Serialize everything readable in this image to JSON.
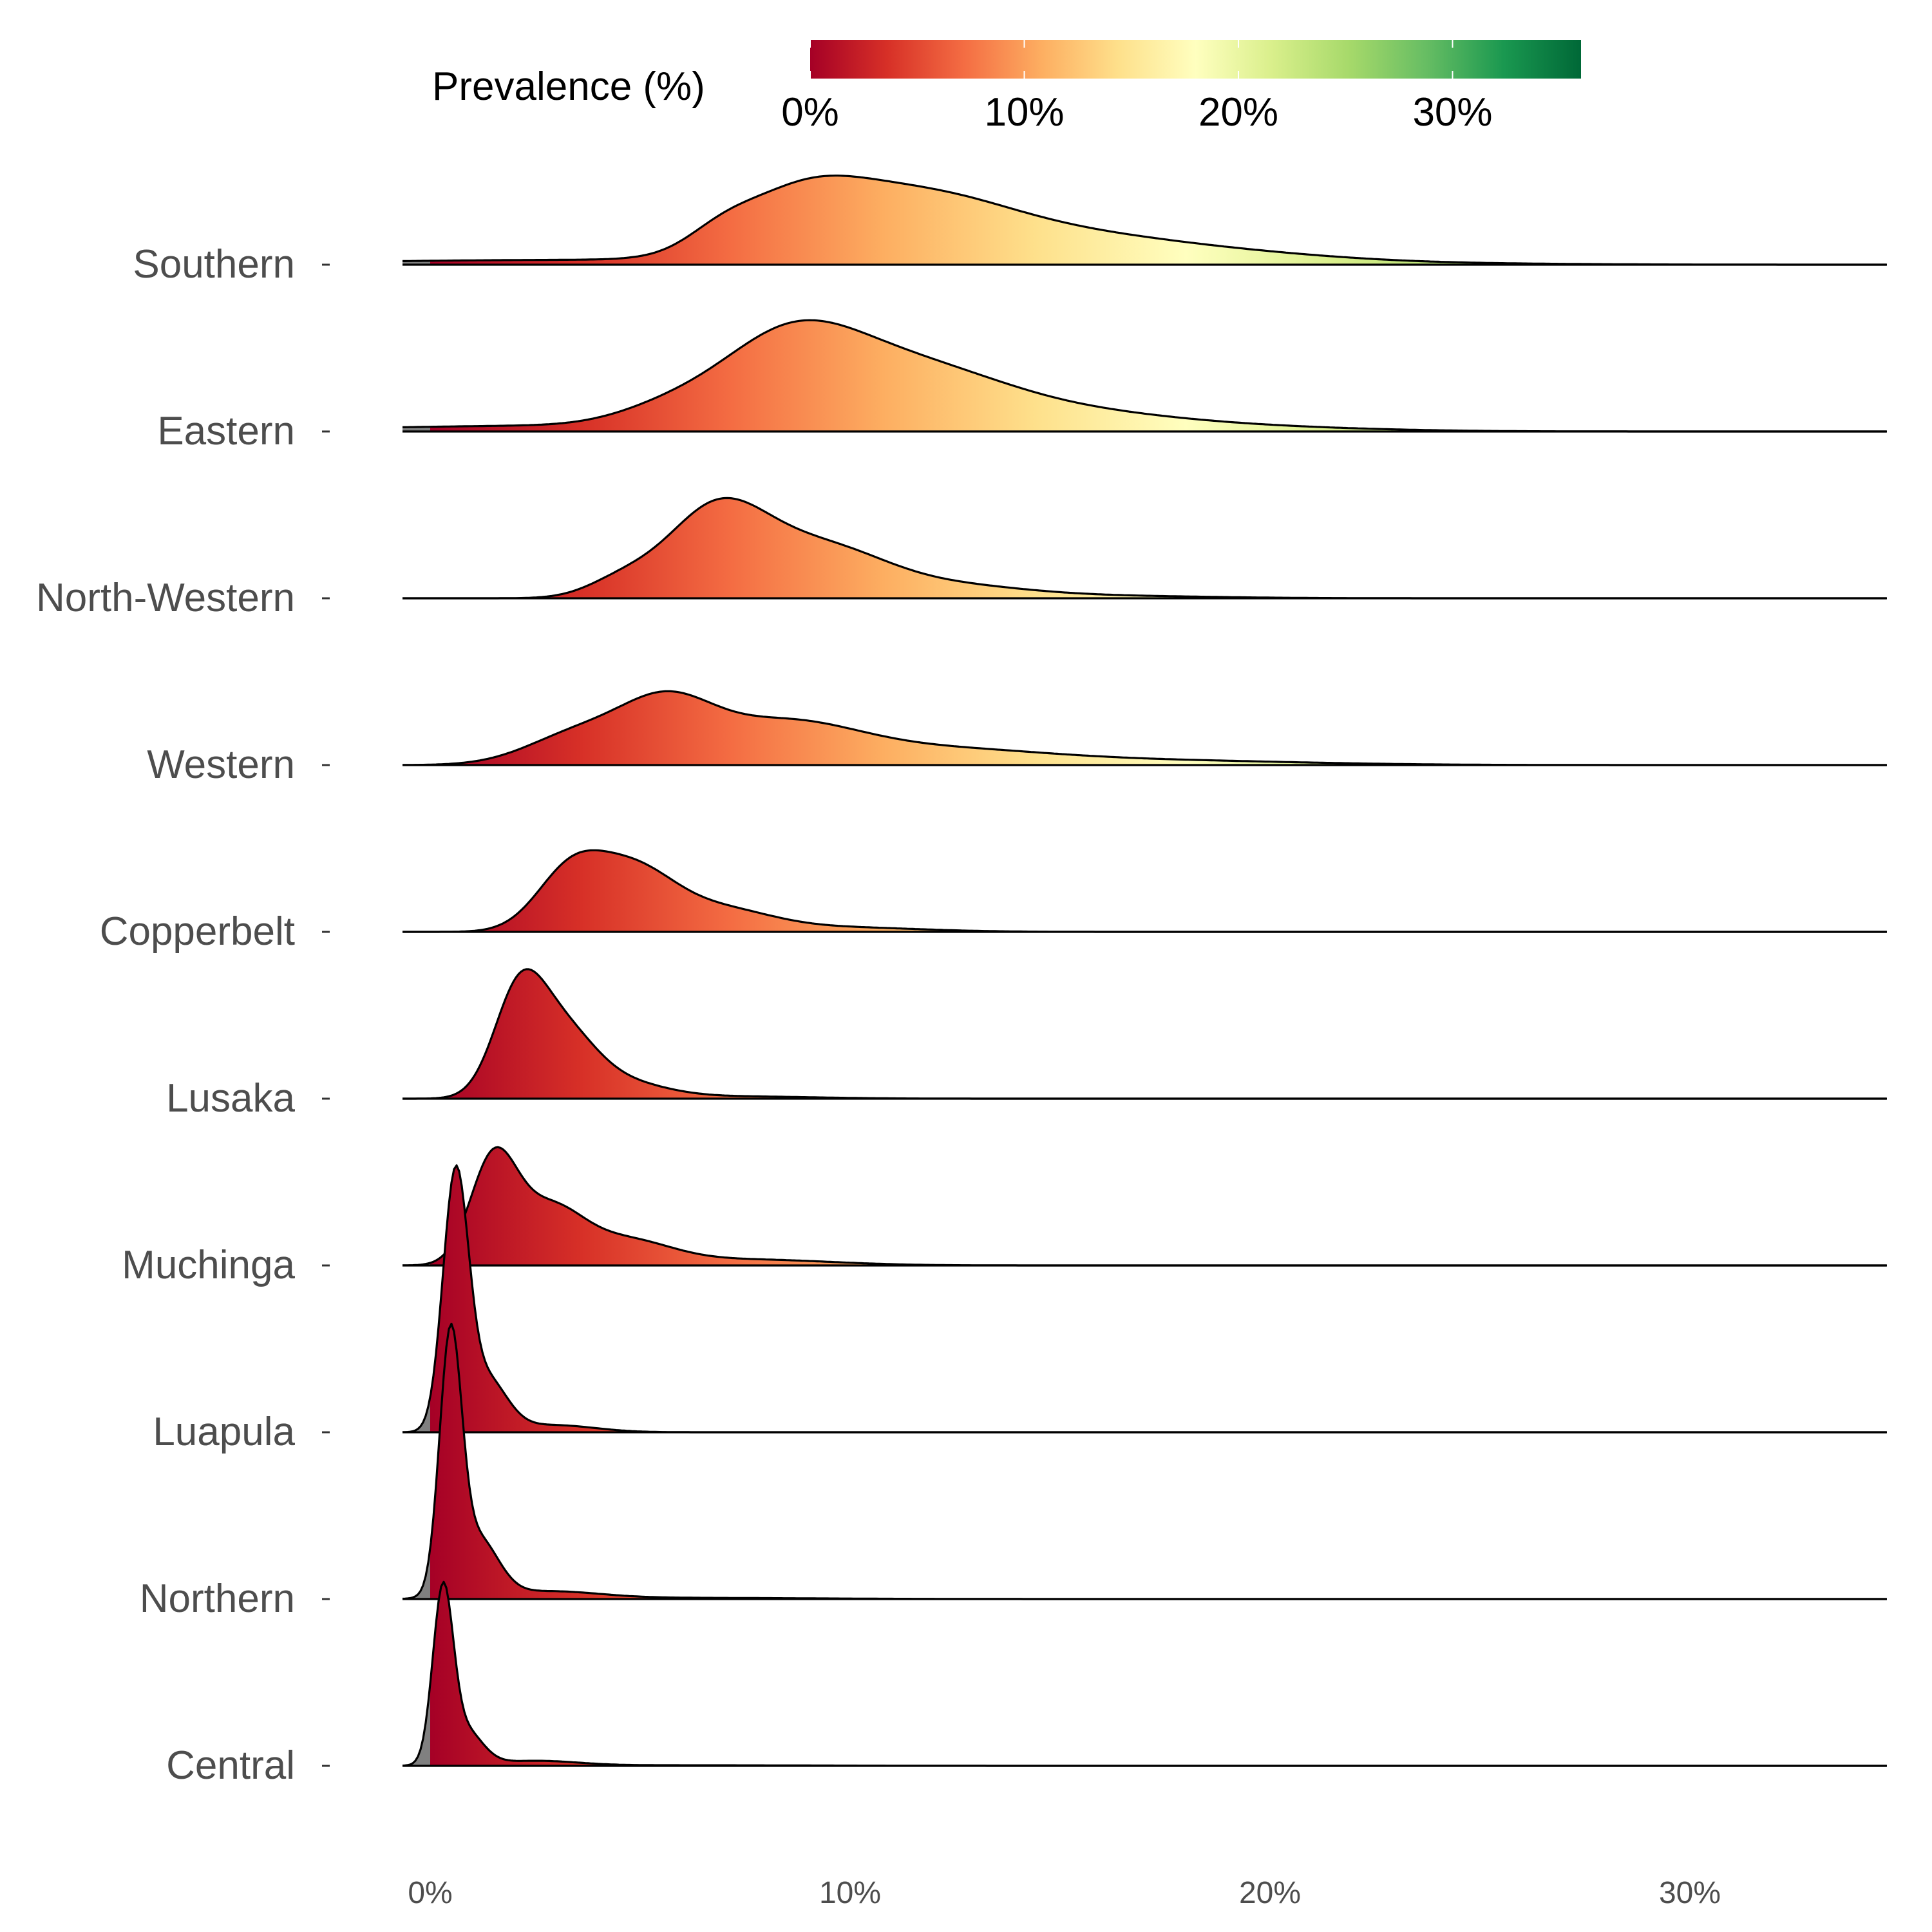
{
  "chart_data": {
    "type": "ridgeline",
    "xlabel": "",
    "ylabel": "",
    "xlim": [
      -0.7,
      35
    ],
    "x_ticks": [
      0,
      10,
      20,
      30
    ],
    "x_tick_labels": [
      "0%",
      "10%",
      "20%",
      "30%"
    ],
    "legend": {
      "title": "Prevalence (%)",
      "position": "top",
      "range": [
        0,
        36
      ],
      "ticks": [
        0,
        10,
        20,
        30
      ],
      "tick_labels": [
        "0%",
        "10%",
        "20%",
        "30%"
      ],
      "colors": [
        "#a50026",
        "#d73027",
        "#f46d43",
        "#fdae61",
        "#fee08b",
        "#ffffbf",
        "#d9ef8b",
        "#a6d96a",
        "#66bd63",
        "#1a9850",
        "#006837"
      ]
    },
    "na_color": "#808080",
    "series": [
      {
        "name": "Southern",
        "peaks": [
          [
            3.5,
            5.5,
            0.04
          ],
          [
            6.9,
            0.8,
            0.12
          ],
          [
            8.7,
            1.5,
            0.42
          ],
          [
            11.5,
            2.2,
            0.52
          ],
          [
            15.5,
            2.5,
            0.2
          ],
          [
            19.5,
            2.5,
            0.07
          ],
          [
            24,
            3,
            0.01
          ]
        ]
      },
      {
        "name": "Eastern",
        "peaks": [
          [
            3.5,
            5,
            0.05
          ],
          [
            5.5,
            1.2,
            0.1
          ],
          [
            8.5,
            1.7,
            0.7
          ],
          [
            11.5,
            2.1,
            0.45
          ],
          [
            15,
            2.5,
            0.14
          ],
          [
            19,
            3,
            0.04
          ]
        ]
      },
      {
        "name": "North-Western",
        "peaks": [
          [
            4.5,
            0.8,
            0.12
          ],
          [
            6.8,
            1.2,
            0.72
          ],
          [
            9.3,
            1.5,
            0.4
          ],
          [
            12.3,
            1.8,
            0.1
          ],
          [
            16,
            2.5,
            0.02
          ]
        ]
      },
      {
        "name": "Western",
        "peaks": [
          [
            3.5,
            1.2,
            0.25
          ],
          [
            5.6,
            1.1,
            0.45
          ],
          [
            8.3,
            1.8,
            0.33
          ],
          [
            12,
            2.5,
            0.12
          ],
          [
            17,
            3.5,
            0.04
          ]
        ]
      },
      {
        "name": "Copperbelt",
        "peaks": [
          [
            3.3,
            0.8,
            0.45
          ],
          [
            4.8,
            1.0,
            0.5
          ],
          [
            6.9,
            1.2,
            0.17
          ],
          [
            9.5,
            2,
            0.04
          ]
        ]
      },
      {
        "name": "Lusaka",
        "peaks": [
          [
            2.1,
            0.6,
            0.78
          ],
          [
            3.1,
            0.8,
            0.55
          ],
          [
            4.6,
            1,
            0.12
          ],
          [
            7,
            2,
            0.02
          ]
        ]
      },
      {
        "name": "Muchinga",
        "peaks": [
          [
            1.5,
            0.55,
            0.85
          ],
          [
            2.8,
            0.8,
            0.45
          ],
          [
            4.6,
            1.1,
            0.2
          ],
          [
            7.5,
            2,
            0.05
          ]
        ]
      },
      {
        "name": "Luapula",
        "peaks": [
          [
            0.6,
            0.3,
            2.05
          ],
          [
            1.3,
            0.5,
            0.45
          ],
          [
            2.9,
            1,
            0.06
          ]
        ]
      },
      {
        "name": "Northern",
        "peaks": [
          [
            0.48,
            0.26,
            2.05
          ],
          [
            1.1,
            0.5,
            0.5
          ],
          [
            2.8,
            1.2,
            0.06
          ],
          [
            6,
            3,
            0.01
          ]
        ]
      },
      {
        "name": "Central",
        "peaks": [
          [
            0.3,
            0.24,
            1.38
          ],
          [
            0.8,
            0.42,
            0.3
          ],
          [
            2.5,
            1,
            0.04
          ],
          [
            6,
            3,
            0.005
          ]
        ]
      }
    ]
  }
}
